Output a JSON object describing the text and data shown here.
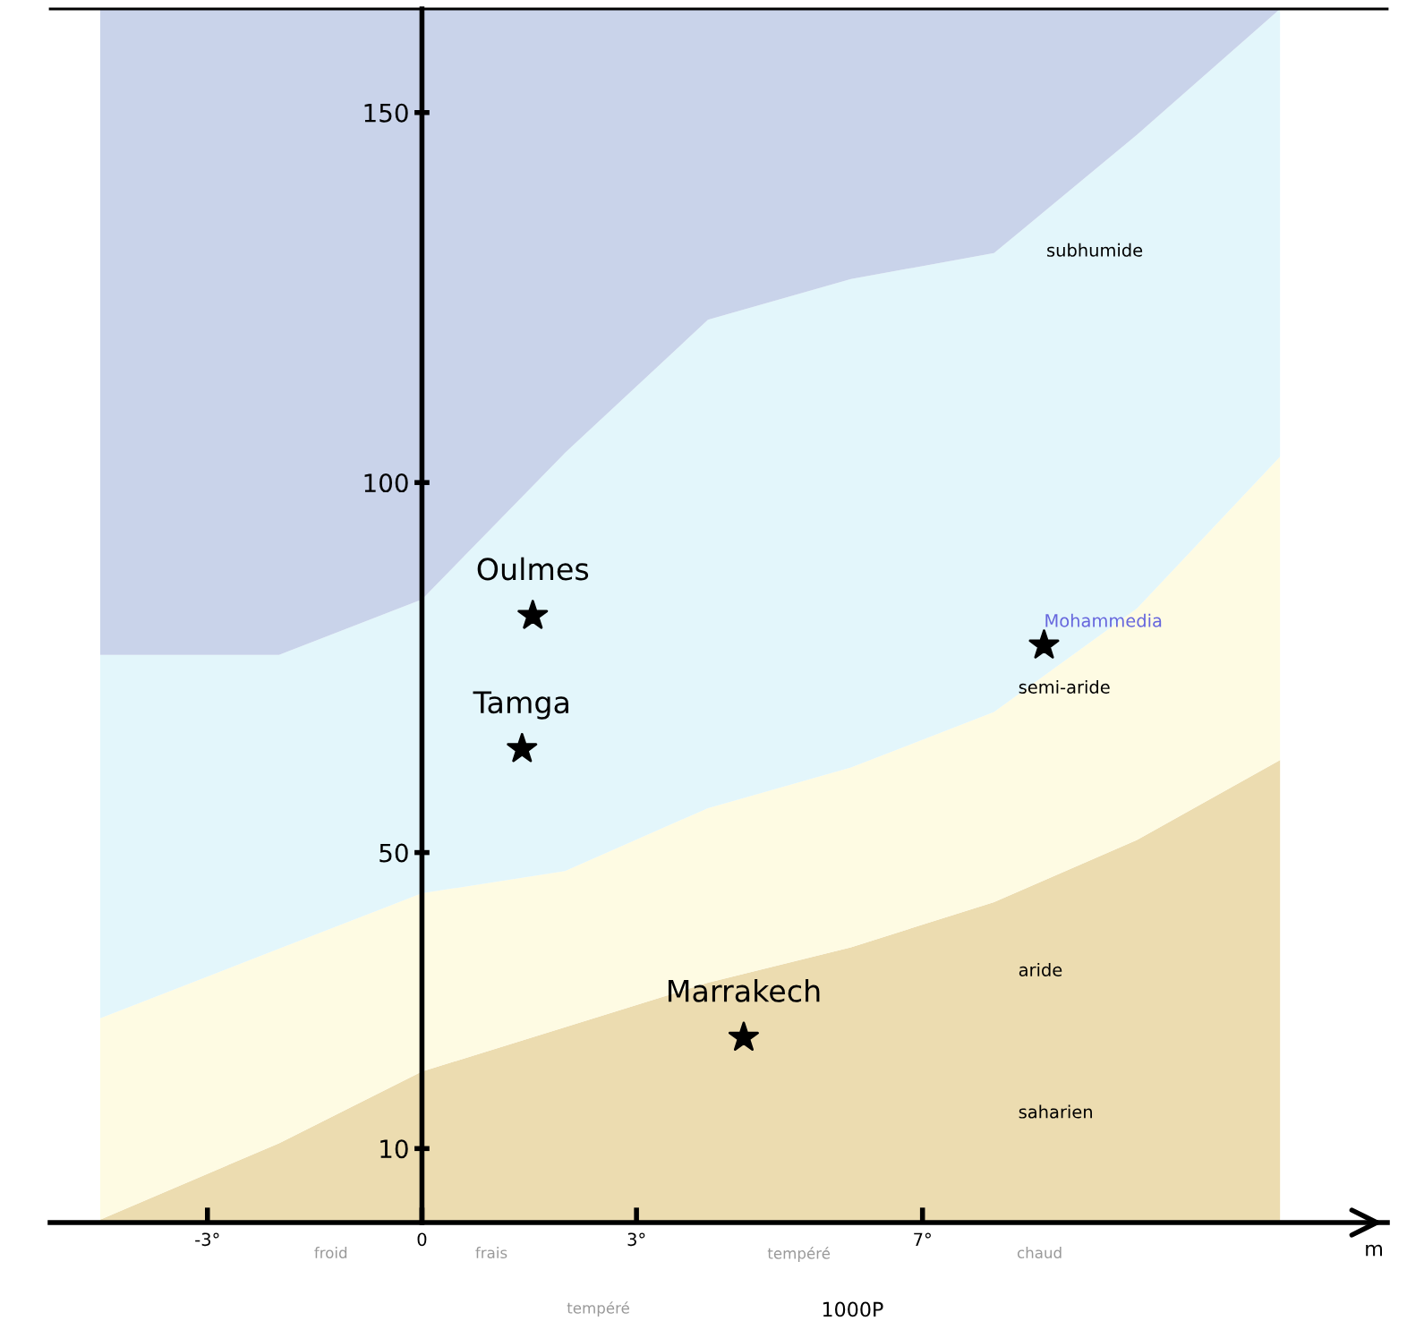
{
  "chart_data": {
    "type": "area",
    "stacked": true,
    "x": [
      -4.5,
      -2,
      0,
      2,
      4,
      6,
      8,
      10,
      12
    ],
    "xlabel": "m",
    "xlim": [
      -5.2,
      13.5
    ],
    "ylim": [
      0,
      164
    ],
    "xticks": [
      {
        "value": -3,
        "label": "-3°"
      },
      {
        "value": 0,
        "label": "0"
      },
      {
        "value": 3,
        "label": "3°"
      },
      {
        "value": 7,
        "label": "7°"
      }
    ],
    "yticks": [
      10,
      50,
      100,
      150
    ],
    "series": [
      {
        "color": "#ecdcb0",
        "values": [
          0.4,
          10.7,
          20.4,
          26.4,
          32.4,
          37.2,
          43.3,
          51.7,
          62.5
        ]
      },
      {
        "color": "#fefbe3",
        "values": [
          27.2,
          26.3,
          24.1,
          21.1,
          23.6,
          24.3,
          25.7,
          31.3,
          41
        ]
      },
      {
        "color": "#e3f6fb",
        "values": [
          49.1,
          39.7,
          39.7,
          56.5,
          66,
          66,
          62,
          64,
          60.5
        ]
      },
      {
        "color": "#c9d3ea",
        "values": [
          87.3,
          87.3,
          79.8,
          60,
          42,
          36.5,
          33,
          17,
          0
        ]
      },
      {
        "type": "scatter",
        "color": "#000000",
        "marker": "star",
        "x": [
          1.55,
          1.4,
          4.5,
          8.7
        ],
        "values": [
          82,
          64,
          25,
          78
        ]
      }
    ],
    "annotations": [
      {
        "text": "Oulmes",
        "x": 1.55,
        "y": 82
      },
      {
        "text": "Tamga",
        "x": 1.4,
        "y": 64
      },
      {
        "text": "Marrakech",
        "x": 4.5,
        "y": 25
      },
      {
        "text": "Mohammedia",
        "x": 8.7,
        "y": 78
      },
      "subhumide",
      "semi-aride",
      "aride",
      "saharien",
      "froid",
      "frais",
      "tempéré",
      "chaud",
      "tempéré",
      "1000P"
    ],
    "grid": false,
    "legend": false
  }
}
